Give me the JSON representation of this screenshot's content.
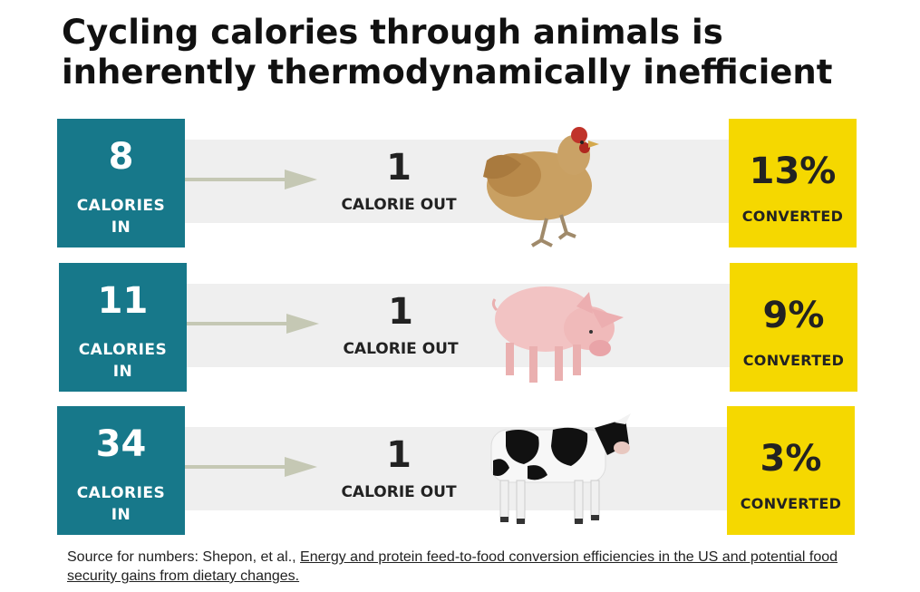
{
  "title": "Cycling calories through animals is inherently thermodynamically inefficient",
  "rows": [
    {
      "animal": "chicken",
      "calories_in": "8",
      "in_label": "CALORIES IN",
      "calories_out": "1",
      "out_label": "CALORIE OUT",
      "percent": "13%",
      "percent_label": "CONVERTED"
    },
    {
      "animal": "pig",
      "calories_in": "11",
      "in_label": "CALORIES IN",
      "calories_out": "1",
      "out_label": "CALORIE OUT",
      "percent": "9%",
      "percent_label": "CONVERTED"
    },
    {
      "animal": "cow",
      "calories_in": "34",
      "in_label": "CALORIES IN",
      "calories_out": "1",
      "out_label": "CALORIE OUT",
      "percent": "3%",
      "percent_label": "CONVERTED"
    }
  ],
  "source": {
    "prefix": "Source for numbers: Shepon, et al., ",
    "link_text": "Energy and protein feed-to-food conversion efficiencies in the US and potential food security gains from dietary changes."
  },
  "colors": {
    "teal": "#17788a",
    "yellow": "#f5d800",
    "band": "#efefef",
    "arrow": "#c5c8b4"
  }
}
